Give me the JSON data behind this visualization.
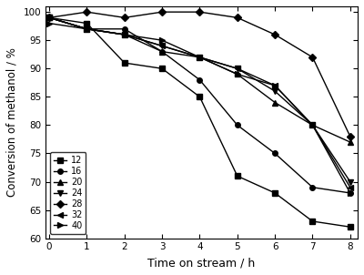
{
  "title": "",
  "xlabel": "Time on stream / h",
  "ylabel": "Conversion of methanol / %",
  "xlim": [
    -0.1,
    8.2
  ],
  "ylim": [
    60,
    101
  ],
  "yticks": [
    60,
    65,
    70,
    75,
    80,
    85,
    90,
    95,
    100
  ],
  "xticks": [
    0,
    1,
    2,
    3,
    4,
    5,
    6,
    7,
    8
  ],
  "series": [
    {
      "label": "12",
      "marker": "s",
      "x": [
        0,
        1,
        2,
        3,
        4,
        5,
        6,
        7,
        8
      ],
      "y": [
        99,
        98,
        91,
        90,
        85,
        71,
        68,
        63,
        62
      ]
    },
    {
      "label": "16",
      "marker": "o",
      "x": [
        0,
        1,
        2,
        3,
        4,
        5,
        6,
        7,
        8
      ],
      "y": [
        99,
        97,
        97,
        93,
        88,
        80,
        75,
        69,
        68
      ]
    },
    {
      "label": "20",
      "marker": "^",
      "x": [
        0,
        1,
        2,
        3,
        4,
        5,
        6,
        7,
        8
      ],
      "y": [
        99,
        97,
        96,
        93,
        92,
        89,
        84,
        80,
        77
      ]
    },
    {
      "label": "24",
      "marker": "v",
      "x": [
        0,
        1,
        2,
        3,
        4,
        5,
        6,
        7,
        8
      ],
      "y": [
        99,
        97,
        96,
        94,
        92,
        90,
        86,
        80,
        70
      ]
    },
    {
      "label": "28",
      "marker": "D",
      "x": [
        0,
        1,
        2,
        3,
        4,
        5,
        6,
        7,
        8
      ],
      "y": [
        99,
        100,
        99,
        100,
        100,
        99,
        96,
        92,
        78
      ]
    },
    {
      "label": "32",
      "marker": "<",
      "x": [
        0,
        1,
        2,
        3,
        4,
        5,
        6,
        7,
        8
      ],
      "y": [
        99,
        97,
        96,
        94,
        92,
        90,
        87,
        80,
        69
      ]
    },
    {
      "label": "40",
      "marker": ">",
      "x": [
        0,
        1,
        2,
        3,
        4,
        5,
        6,
        7,
        8
      ],
      "y": [
        98,
        97,
        96,
        95,
        92,
        89,
        87,
        80,
        68
      ]
    }
  ],
  "line_color": "#000000",
  "markersize": 4,
  "linewidth": 1.0,
  "legend_loc": "lower left",
  "legend_fontsize": 7,
  "tick_fontsize": 7.5,
  "xlabel_fontsize": 9,
  "ylabel_fontsize": 8.5,
  "background_color": "#ffffff"
}
